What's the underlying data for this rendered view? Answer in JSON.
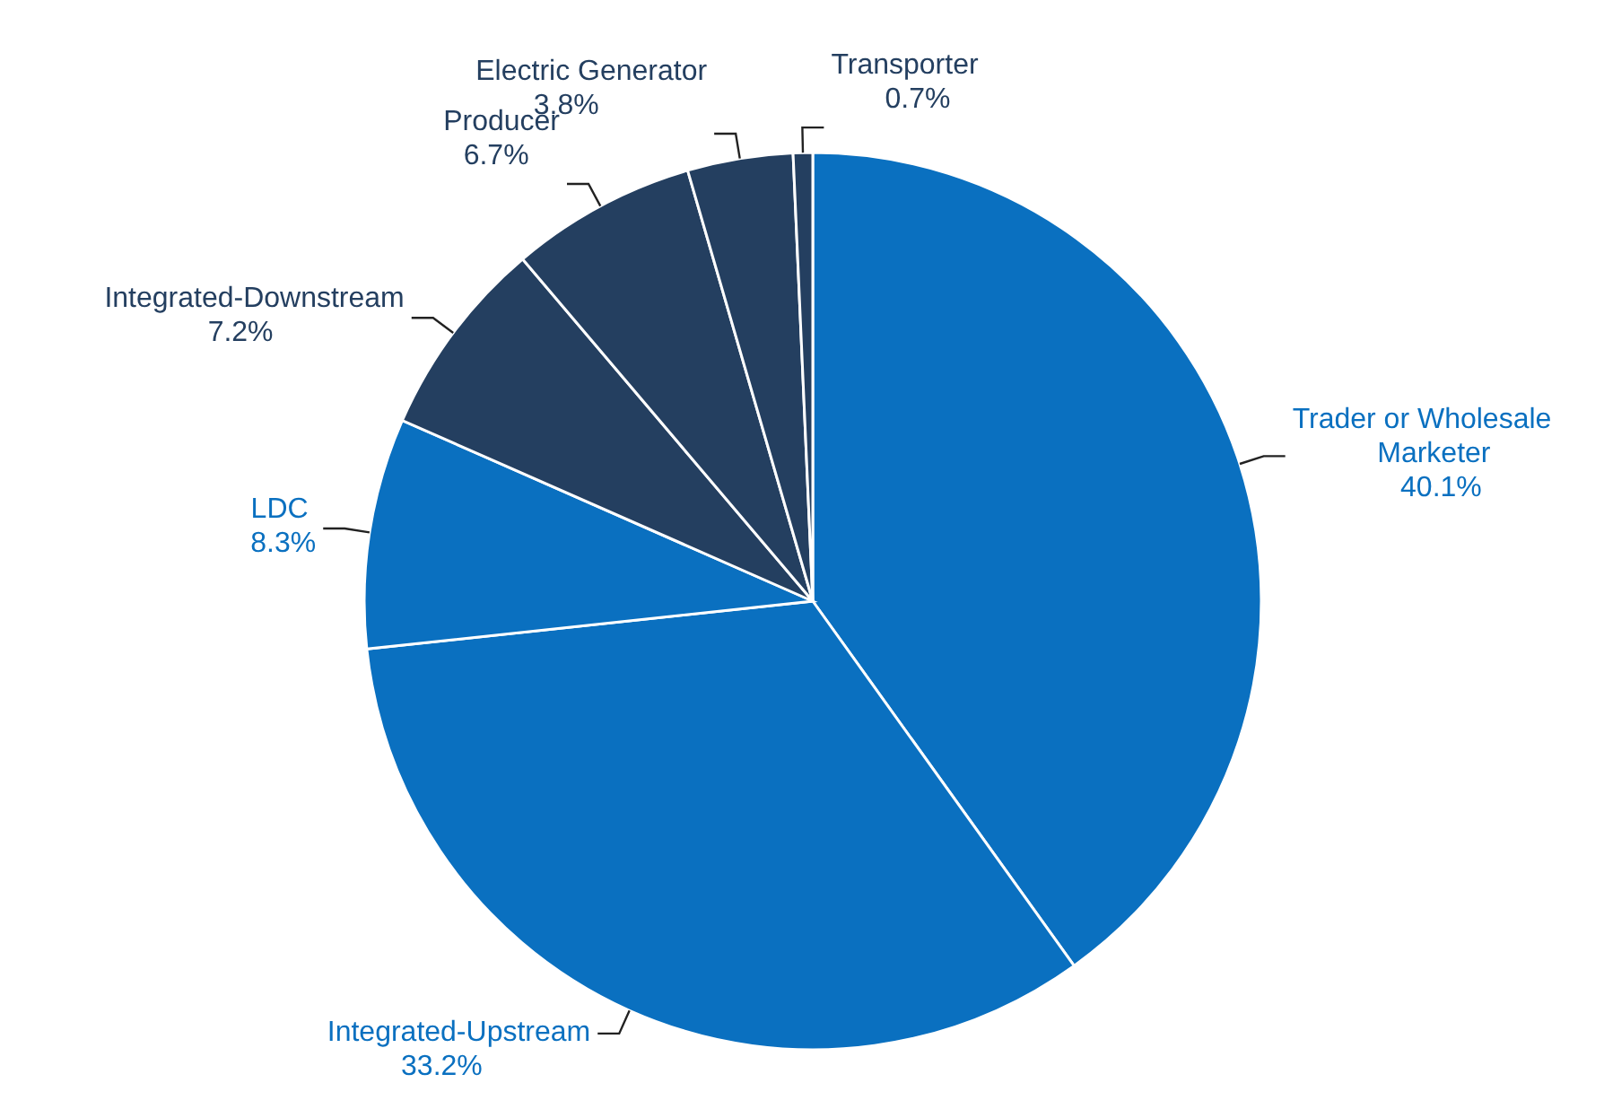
{
  "chart_data": {
    "type": "pie",
    "categories": [
      "Trader or Wholesale Marketer",
      "Integrated-Upstream",
      "LDC",
      "Integrated-Downstream",
      "Producer",
      "Electric Generator",
      "Transporter"
    ],
    "values": [
      40.1,
      33.2,
      8.3,
      7.2,
      6.7,
      3.8,
      0.7
    ],
    "colors": [
      "#0a70c0",
      "#0a70c0",
      "#0a70c0",
      "#243f60",
      "#243f60",
      "#243f60",
      "#243f60"
    ],
    "value_labels": [
      "40.1%",
      "33.2%",
      "8.3%",
      "7.2%",
      "6.7%",
      "3.8%",
      "0.7%"
    ],
    "legend": false
  }
}
